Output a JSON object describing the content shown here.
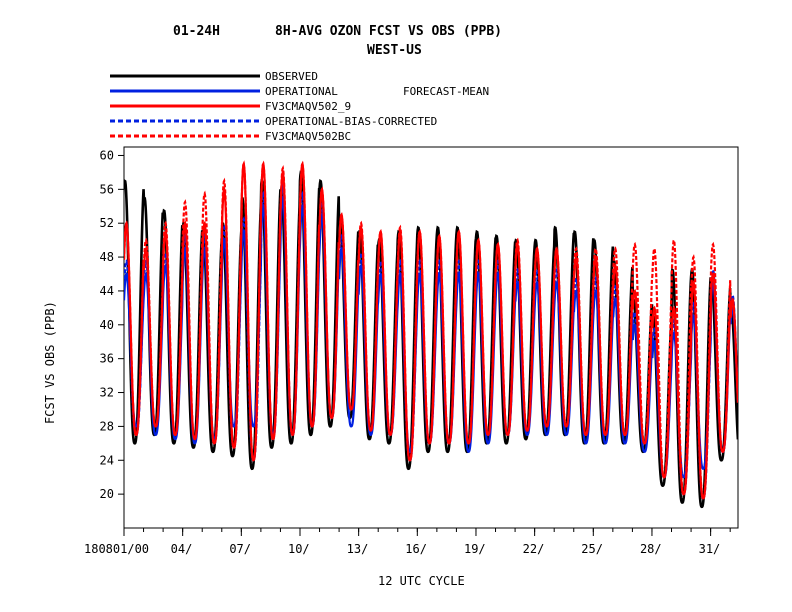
{
  "chart_data": {
    "type": "line",
    "title_left": "01-24H",
    "title_right": "8H-AVG OZON FCST VS OBS (PPB)",
    "subtitle": "WEST-US",
    "legend_note": "FORECAST-MEAN",
    "xlabel": "12 UTC CYCLE",
    "ylabel": "FCST VS OBS (PPB)",
    "x_range": [
      1,
      32.4
    ],
    "ylim": [
      16,
      61
    ],
    "y_ticks": [
      20,
      24,
      28,
      32,
      36,
      40,
      44,
      48,
      52,
      56,
      60
    ],
    "x_ticks": [
      {
        "day": 1,
        "label": "180801/00"
      },
      {
        "day": 4,
        "label": "04/"
      },
      {
        "day": 7,
        "label": "07/"
      },
      {
        "day": 10,
        "label": "10/"
      },
      {
        "day": 13,
        "label": "13/"
      },
      {
        "day": 16,
        "label": "16/"
      },
      {
        "day": 19,
        "label": "19/"
      },
      {
        "day": 22,
        "label": "22/"
      },
      {
        "day": 25,
        "label": "25/"
      },
      {
        "day": 28,
        "label": "28/"
      },
      {
        "day": 31,
        "label": "31/"
      }
    ],
    "series": [
      {
        "name": "OBSERVED",
        "color": "#000000",
        "dash": "solid",
        "daily_max": [
          57,
          55,
          53.5,
          52,
          51,
          52,
          55,
          57,
          56,
          58,
          57,
          52.5,
          51,
          50,
          51,
          51.5,
          51.5,
          51.5,
          51,
          50.5,
          50,
          50,
          51.5,
          51,
          50,
          47.5,
          43,
          41,
          46.5,
          46.5,
          45,
          42
        ],
        "daily_min": [
          26,
          27,
          26,
          25.5,
          25,
          24.5,
          23,
          25.5,
          26,
          27,
          28,
          29,
          26.5,
          26,
          23,
          25,
          25,
          25,
          26,
          26,
          26.5,
          27,
          27,
          26,
          26,
          26,
          25,
          21,
          19,
          18.5,
          24,
          24
        ]
      },
      {
        "name": "OPERATIONAL",
        "color": "#0020e0",
        "dash": "solid",
        "daily_max": [
          46,
          46,
          47,
          49,
          49,
          50,
          51,
          54,
          55,
          54,
          53,
          49,
          47,
          46,
          46,
          46,
          46,
          46,
          46,
          46,
          45,
          45,
          45,
          44,
          44,
          43,
          40,
          38,
          39,
          41,
          45,
          42
        ],
        "daily_min": [
          28,
          27,
          26.5,
          26,
          26.5,
          28,
          28,
          27,
          27,
          28,
          29,
          28,
          27,
          27,
          25,
          26,
          26,
          25,
          26,
          27,
          27,
          27,
          27,
          26,
          26,
          26,
          25,
          22,
          22,
          23,
          25,
          26
        ]
      },
      {
        "name": "FV3CMAQV502_9",
        "color": "#ff0000",
        "dash": "solid",
        "daily_max": [
          52,
          49,
          51,
          52,
          52,
          56,
          59,
          59,
          58,
          59,
          56,
          53,
          51.5,
          51,
          51,
          51,
          50.5,
          51,
          50,
          49.5,
          49.5,
          49,
          49,
          48,
          48,
          47,
          44,
          42,
          42,
          45,
          46,
          43
        ]
      },
      {
        "name": "OPERATIONAL-BIAS-CORRECTED",
        "color": "#0020e0",
        "dash": "dashed"
      },
      {
        "name": "FV3CMAQV502BC",
        "color": "#ff0000",
        "dash": "dashed",
        "daily_max": [
          52,
          50,
          52,
          54.5,
          55.5,
          57,
          59,
          59,
          58.5,
          59,
          56,
          53,
          52,
          51,
          51.5,
          51,
          50.5,
          51,
          50,
          49.5,
          50,
          49,
          49,
          49,
          49,
          49,
          49.5,
          49,
          50,
          48,
          49.5,
          43
        ]
      }
    ]
  }
}
